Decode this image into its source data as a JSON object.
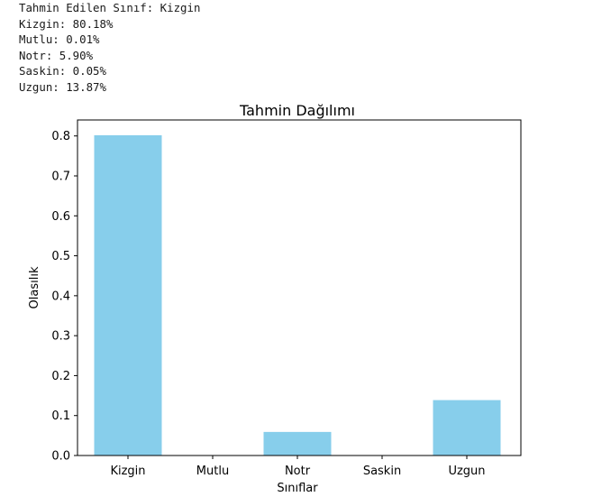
{
  "output": {
    "lines": [
      "Tahmin Edilen Sınıf: Kizgin",
      "Kizgin: 80.18%",
      "Mutlu: 0.01%",
      "Notr: 5.90%",
      "Saskin: 0.05%",
      "Uzgun: 13.87%"
    ]
  },
  "chart_data": {
    "type": "bar",
    "title": "Tahmin Dağılımı",
    "xlabel": "Sınıflar",
    "ylabel": "Olasılık",
    "categories": [
      "Kizgin",
      "Mutlu",
      "Notr",
      "Saskin",
      "Uzgun"
    ],
    "values": [
      0.8018,
      0.0001,
      0.059,
      0.0005,
      0.1387
    ],
    "ylim": [
      0,
      0.84
    ],
    "yticks": [
      0.0,
      0.1,
      0.2,
      0.3,
      0.4,
      0.5,
      0.6,
      0.7,
      0.8
    ],
    "ytick_labels": [
      "0.0",
      "0.1",
      "0.2",
      "0.3",
      "0.4",
      "0.5",
      "0.6",
      "0.7",
      "0.8"
    ],
    "bar_color": "#87ceeb",
    "grid": false,
    "legend": "none"
  }
}
